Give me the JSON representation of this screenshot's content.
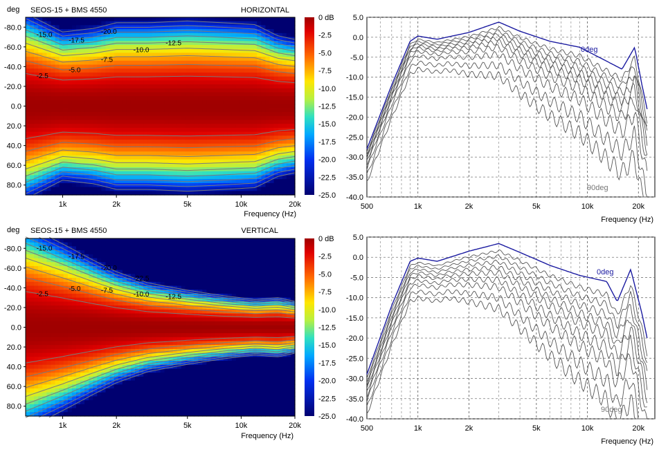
{
  "chart_data": [
    {
      "type": "heatmap",
      "title": "SEOS-15 + BMS 4550",
      "subtitle": "HORIZONTAL",
      "xlabel": "Frequency (Hz)",
      "ylabel": "deg",
      "xscale": "log",
      "xlim": [
        620,
        20000
      ],
      "ylim": [
        -90,
        90
      ],
      "x_ticks": [
        "1k",
        "2k",
        "5k",
        "10k",
        "20k"
      ],
      "y_ticks": [
        "-80.0",
        "-60.0",
        "-40.0",
        "-20.0",
        "0.0",
        "20.0",
        "40.0",
        "60.0",
        "80.0"
      ],
      "colorbar": {
        "min": -25,
        "max": 0,
        "labels": [
          "0 dB",
          "-2.5",
          "-5.0",
          "-7.5",
          "-10.0",
          "-12.5",
          "-15.0",
          "-17.5",
          "-20.0",
          "-22.5",
          "-25.0"
        ]
      },
      "half_width_deg": [
        {
          "f": 620,
          "deg": 50
        },
        {
          "f": 1000,
          "deg": 40
        },
        {
          "f": 1500,
          "deg": 42
        },
        {
          "f": 2000,
          "deg": 45
        },
        {
          "f": 3000,
          "deg": 45
        },
        {
          "f": 5000,
          "deg": 46
        },
        {
          "f": 8000,
          "deg": 45
        },
        {
          "f": 12000,
          "deg": 44
        },
        {
          "f": 16000,
          "deg": 38
        },
        {
          "f": 20000,
          "deg": 36
        }
      ],
      "contour_labels": [
        "-2.5",
        "-5.0",
        "-7.5",
        "-10.0",
        "-12.5",
        "-15.0",
        "-17.5",
        "-20.0"
      ]
    },
    {
      "type": "line",
      "xlabel": "Frequency (Hz)",
      "xscale": "log",
      "xlim": [
        500,
        25000
      ],
      "ylim": [
        -40,
        5
      ],
      "x_ticks": [
        "500",
        "1k",
        "2k",
        "5k",
        "10k",
        "20k"
      ],
      "y_ticks": [
        "5.0",
        "0.0",
        "-5.0",
        "-10.0",
        "-15.0",
        "-20.0",
        "-25.0",
        "-30.0",
        "-35.0",
        "-40.0"
      ],
      "series_labels": [
        "0deg",
        "90deg"
      ],
      "num_curves": 10,
      "curve_offsets_db": [
        0,
        -1.5,
        -2.5,
        -3.5,
        -4.5,
        -5.5,
        -7,
        -9,
        -12,
        -15
      ],
      "on_axis": [
        {
          "f": 500,
          "db": -28
        },
        {
          "f": 700,
          "db": -12
        },
        {
          "f": 900,
          "db": -1
        },
        {
          "f": 1000,
          "db": 0.3
        },
        {
          "f": 1300,
          "db": -0.5
        },
        {
          "f": 2000,
          "db": 1.2
        },
        {
          "f": 3000,
          "db": 3.8
        },
        {
          "f": 4000,
          "db": 1.5
        },
        {
          "f": 6000,
          "db": -1
        },
        {
          "f": 9000,
          "db": -2.5
        },
        {
          "f": 13000,
          "db": -6
        },
        {
          "f": 16000,
          "db": -8
        },
        {
          "f": 19000,
          "db": -2.5
        },
        {
          "f": 21000,
          "db": -12
        },
        {
          "f": 22500,
          "db": -18
        }
      ]
    },
    {
      "type": "heatmap",
      "title": "SEOS-15 + BMS 4550",
      "subtitle": "VERTICAL",
      "xlabel": "Frequency (Hz)",
      "ylabel": "deg",
      "xscale": "log",
      "xlim": [
        620,
        20000
      ],
      "ylim": [
        -90,
        90
      ],
      "x_ticks": [
        "1k",
        "2k",
        "5k",
        "10k",
        "20k"
      ],
      "y_ticks": [
        "-80.0",
        "-60.0",
        "-40.0",
        "-20.0",
        "0.0",
        "20.0",
        "40.0",
        "60.0",
        "80.0"
      ],
      "colorbar": {
        "min": -25,
        "max": 0,
        "labels": [
          "0 dB",
          "-2.5",
          "-5.0",
          "-7.5",
          "-10.0",
          "-12.5",
          "-15.0",
          "-17.5",
          "-20.0",
          "-22.5",
          "-25.0"
        ]
      },
      "half_width_deg": [
        {
          "f": 620,
          "deg": 55
        },
        {
          "f": 1000,
          "deg": 45
        },
        {
          "f": 1500,
          "deg": 36
        },
        {
          "f": 2000,
          "deg": 30
        },
        {
          "f": 3000,
          "deg": 24
        },
        {
          "f": 5000,
          "deg": 20
        },
        {
          "f": 8000,
          "deg": 17
        },
        {
          "f": 12000,
          "deg": 15
        },
        {
          "f": 16000,
          "deg": 16
        },
        {
          "f": 20000,
          "deg": 14
        }
      ],
      "contour_labels": [
        "-2.5",
        "-5.0",
        "-7.5",
        "-10.0",
        "-12.5",
        "-15.0",
        "-17.5",
        "-20.0",
        "-22.5"
      ]
    },
    {
      "type": "line",
      "xlabel": "Frequency (Hz)",
      "xscale": "log",
      "xlim": [
        500,
        25000
      ],
      "ylim": [
        -40,
        5
      ],
      "x_ticks": [
        "500",
        "1k",
        "2k",
        "5k",
        "10k",
        "20k"
      ],
      "y_ticks": [
        "5.0",
        "0.0",
        "-5.0",
        "-10.0",
        "-15.0",
        "-20.0",
        "-25.0",
        "-30.0",
        "-35.0",
        "-40.0"
      ],
      "series_labels": [
        "0deg",
        "90deg"
      ],
      "num_curves": 10,
      "curve_offsets_db": [
        0,
        -2,
        -3.5,
        -5,
        -6.5,
        -8,
        -10,
        -12,
        -15,
        -18
      ],
      "on_axis": [
        {
          "f": 500,
          "db": -29
        },
        {
          "f": 700,
          "db": -12
        },
        {
          "f": 900,
          "db": -1
        },
        {
          "f": 1000,
          "db": -0.2
        },
        {
          "f": 1300,
          "db": -1
        },
        {
          "f": 2000,
          "db": 1.5
        },
        {
          "f": 3000,
          "db": 3.4
        },
        {
          "f": 4000,
          "db": 1.2
        },
        {
          "f": 6000,
          "db": -2
        },
        {
          "f": 9000,
          "db": -4.5
        },
        {
          "f": 13000,
          "db": -6
        },
        {
          "f": 15000,
          "db": -11
        },
        {
          "f": 18000,
          "db": -3
        },
        {
          "f": 21000,
          "db": -14
        },
        {
          "f": 22500,
          "db": -20
        }
      ]
    }
  ]
}
